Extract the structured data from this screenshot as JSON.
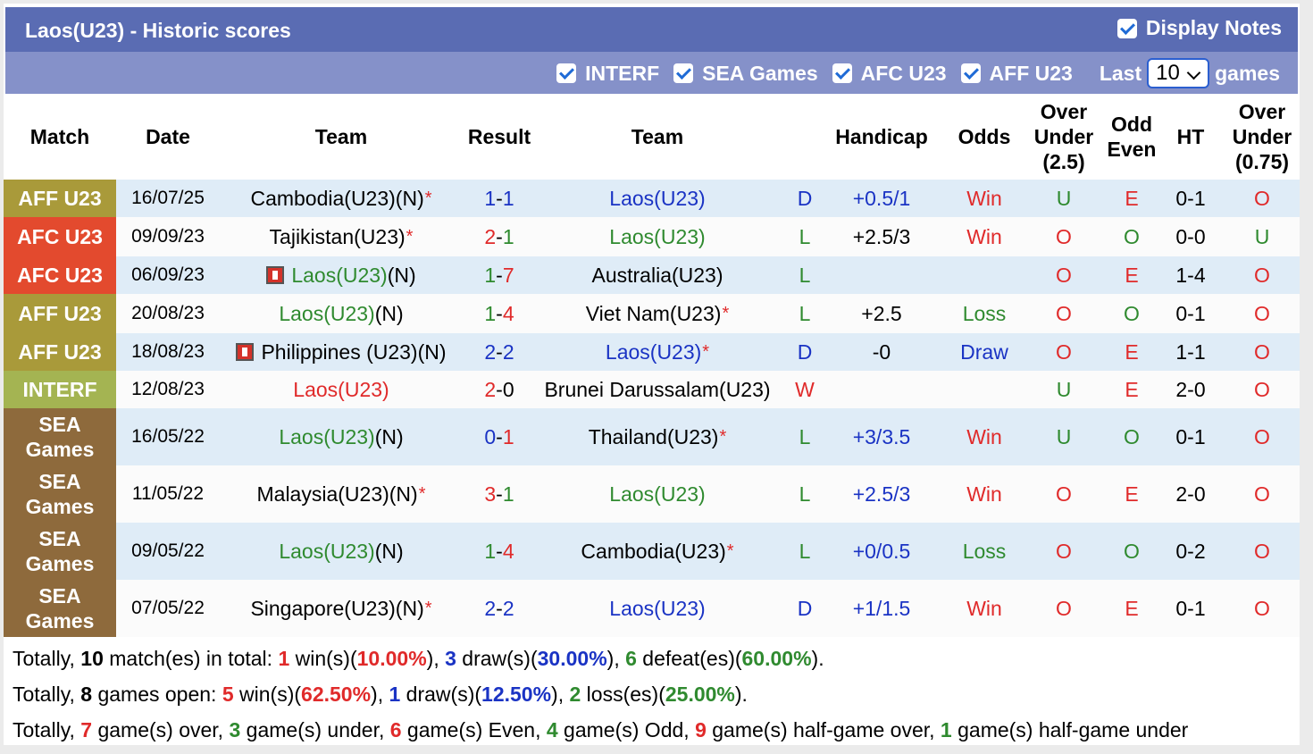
{
  "header": {
    "title": "Laos(U23) - Historic scores",
    "display_notes_label": "Display Notes"
  },
  "filters": {
    "items": [
      {
        "label": "INTERF",
        "checked": true
      },
      {
        "label": "SEA Games",
        "checked": true
      },
      {
        "label": "AFC U23",
        "checked": true
      },
      {
        "label": "AFF U23",
        "checked": true
      }
    ],
    "last_label": "Last",
    "last_value": "10",
    "games_label": "games"
  },
  "columns": {
    "match": "Match",
    "date": "Date",
    "team1": "Team",
    "result": "Result",
    "team2": "Team",
    "handicap": "Handicap",
    "odds": "Odds",
    "ou25": "Over Under (2.5)",
    "oddeven": "Odd Even",
    "ht": "HT",
    "ou075": "Over Under (0.75)"
  },
  "colors": {
    "aff": "#a99a3a",
    "afc": "#e34a2e",
    "interf": "#a4b452",
    "sea": "#8e6a3c",
    "title_bar": "#5a6cb3",
    "filter_bar": "#8591c9",
    "win_green": "#2f8a2f",
    "loss_red": "#e02a2a",
    "draw_blue": "#1a33c4"
  },
  "rows": [
    {
      "match": "AFF U23",
      "league": "aff",
      "date": "16/07/25",
      "home": "Cambodia(U23)(N)",
      "home_star": "*",
      "home_flag": false,
      "home_color": "black",
      "score_h": "1",
      "score_a": "1",
      "score_h_color": "blue",
      "score_a_color": "blue",
      "away": "Laos(U23)",
      "away_star": "",
      "away_color": "blue",
      "wdl": "D",
      "wdl_color": "blue",
      "handicap": "+0.5/1",
      "handicap_color": "blue",
      "odds": "Win",
      "odds_color": "red",
      "ou": "U",
      "ou_color": "green",
      "oe": "E",
      "oe_color": "red",
      "ht": "0-1",
      "ou2": "O",
      "ou2_color": "red",
      "alt": true
    },
    {
      "match": "AFC U23",
      "league": "afc",
      "date": "09/09/23",
      "home": "Tajikistan(U23)",
      "home_star": "*",
      "home_flag": false,
      "home_color": "black",
      "score_h": "2",
      "score_a": "1",
      "score_h_color": "red",
      "score_a_color": "green",
      "away": "Laos(U23)",
      "away_star": "",
      "away_color": "green",
      "wdl": "L",
      "wdl_color": "green",
      "handicap": "+2.5/3",
      "handicap_color": "black",
      "odds": "Win",
      "odds_color": "red",
      "ou": "O",
      "ou_color": "red",
      "oe": "O",
      "oe_color": "green",
      "ht": "0-0",
      "ou2": "U",
      "ou2_color": "green",
      "alt": false
    },
    {
      "match": "AFC U23",
      "league": "afc",
      "date": "06/09/23",
      "home": "Laos(U23)",
      "home_star": "",
      "home_flag": true,
      "home_color": "green",
      "home_suffix": "(N)",
      "score_h": "1",
      "score_a": "7",
      "score_h_color": "green",
      "score_a_color": "red",
      "away": "Australia(U23)",
      "away_star": "",
      "away_color": "black",
      "wdl": "L",
      "wdl_color": "green",
      "handicap": "",
      "handicap_color": "black",
      "odds": "",
      "odds_color": "black",
      "ou": "O",
      "ou_color": "red",
      "oe": "E",
      "oe_color": "red",
      "ht": "1-4",
      "ou2": "O",
      "ou2_color": "red",
      "alt": true
    },
    {
      "match": "AFF U23",
      "league": "aff",
      "date": "20/08/23",
      "home": "Laos(U23)",
      "home_star": "",
      "home_flag": false,
      "home_color": "green",
      "home_suffix": "(N)",
      "score_h": "1",
      "score_a": "4",
      "score_h_color": "green",
      "score_a_color": "red",
      "away": "Viet Nam(U23)",
      "away_star": "*",
      "away_color": "black",
      "wdl": "L",
      "wdl_color": "green",
      "handicap": "+2.5",
      "handicap_color": "black",
      "odds": "Loss",
      "odds_color": "green",
      "ou": "O",
      "ou_color": "red",
      "oe": "O",
      "oe_color": "green",
      "ht": "0-1",
      "ou2": "O",
      "ou2_color": "red",
      "alt": false
    },
    {
      "match": "AFF U23",
      "league": "aff",
      "date": "18/08/23",
      "home": "Philippines (U23)(N)",
      "home_star": "",
      "home_flag": true,
      "home_color": "black",
      "score_h": "2",
      "score_a": "2",
      "score_h_color": "blue",
      "score_a_color": "blue",
      "away": "Laos(U23)",
      "away_star": "*",
      "away_color": "blue",
      "wdl": "D",
      "wdl_color": "blue",
      "handicap": "-0",
      "handicap_color": "black",
      "odds": "Draw",
      "odds_color": "blue",
      "ou": "O",
      "ou_color": "red",
      "oe": "E",
      "oe_color": "red",
      "ht": "1-1",
      "ou2": "O",
      "ou2_color": "red",
      "alt": true
    },
    {
      "match": "INTERF",
      "league": "interf",
      "date": "12/08/23",
      "home": "Laos(U23)",
      "home_star": "",
      "home_flag": false,
      "home_color": "red",
      "score_h": "2",
      "score_a": "0",
      "score_h_color": "red",
      "score_a_color": "black",
      "away": "Brunei Darussalam(U23)",
      "away_star": "",
      "away_color": "black",
      "wdl": "W",
      "wdl_color": "red",
      "handicap": "",
      "handicap_color": "black",
      "odds": "",
      "odds_color": "black",
      "ou": "U",
      "ou_color": "green",
      "oe": "E",
      "oe_color": "red",
      "ht": "2-0",
      "ou2": "O",
      "ou2_color": "red",
      "alt": false
    },
    {
      "match": "SEA Games",
      "league": "sea",
      "date": "16/05/22",
      "home": "Laos(U23)",
      "home_star": "",
      "home_flag": false,
      "home_color": "green",
      "home_suffix": "(N)",
      "score_h": "0",
      "score_a": "1",
      "score_h_color": "blue",
      "score_a_color": "red",
      "away": "Thailand(U23)",
      "away_star": "*",
      "away_color": "black",
      "wdl": "L",
      "wdl_color": "green",
      "handicap": "+3/3.5",
      "handicap_color": "blue",
      "odds": "Win",
      "odds_color": "red",
      "ou": "U",
      "ou_color": "green",
      "oe": "O",
      "oe_color": "green",
      "ht": "0-1",
      "ou2": "O",
      "ou2_color": "red",
      "alt": true
    },
    {
      "match": "SEA Games",
      "league": "sea",
      "date": "11/05/22",
      "home": "Malaysia(U23)(N)",
      "home_star": "*",
      "home_flag": false,
      "home_color": "black",
      "score_h": "3",
      "score_a": "1",
      "score_h_color": "red",
      "score_a_color": "green",
      "away": "Laos(U23)",
      "away_star": "",
      "away_color": "green",
      "wdl": "L",
      "wdl_color": "green",
      "handicap": "+2.5/3",
      "handicap_color": "blue",
      "odds": "Win",
      "odds_color": "red",
      "ou": "O",
      "ou_color": "red",
      "oe": "E",
      "oe_color": "red",
      "ht": "2-0",
      "ou2": "O",
      "ou2_color": "red",
      "alt": false
    },
    {
      "match": "SEA Games",
      "league": "sea",
      "date": "09/05/22",
      "home": "Laos(U23)",
      "home_star": "",
      "home_flag": false,
      "home_color": "green",
      "home_suffix": "(N)",
      "score_h": "1",
      "score_a": "4",
      "score_h_color": "green",
      "score_a_color": "red",
      "away": "Cambodia(U23)",
      "away_star": "*",
      "away_color": "black",
      "wdl": "L",
      "wdl_color": "green",
      "handicap": "+0/0.5",
      "handicap_color": "blue",
      "odds": "Loss",
      "odds_color": "green",
      "ou": "O",
      "ou_color": "red",
      "oe": "O",
      "oe_color": "green",
      "ht": "0-2",
      "ou2": "O",
      "ou2_color": "red",
      "alt": true
    },
    {
      "match": "SEA Games",
      "league": "sea",
      "date": "07/05/22",
      "home": "Singapore(U23)(N)",
      "home_star": "*",
      "home_flag": false,
      "home_color": "black",
      "score_h": "2",
      "score_a": "2",
      "score_h_color": "blue",
      "score_a_color": "blue",
      "away": "Laos(U23)",
      "away_star": "",
      "away_color": "blue",
      "wdl": "D",
      "wdl_color": "blue",
      "handicap": "+1/1.5",
      "handicap_color": "blue",
      "odds": "Win",
      "odds_color": "red",
      "ou": "O",
      "ou_color": "red",
      "oe": "E",
      "oe_color": "red",
      "ht": "0-1",
      "ou2": "O",
      "ou2_color": "red",
      "alt": false
    }
  ],
  "summary": {
    "line1": [
      {
        "t": "Totally, ",
        "c": "black",
        "b": false
      },
      {
        "t": "10",
        "c": "black",
        "b": true
      },
      {
        "t": " match(es) in total: ",
        "c": "black",
        "b": false
      },
      {
        "t": "1",
        "c": "red",
        "b": true
      },
      {
        "t": " win(s)(",
        "c": "black",
        "b": false
      },
      {
        "t": "10.00%",
        "c": "red",
        "b": true
      },
      {
        "t": "), ",
        "c": "black",
        "b": false
      },
      {
        "t": "3",
        "c": "blue",
        "b": true
      },
      {
        "t": " draw(s)(",
        "c": "black",
        "b": false
      },
      {
        "t": "30.00%",
        "c": "blue",
        "b": true
      },
      {
        "t": "), ",
        "c": "black",
        "b": false
      },
      {
        "t": "6",
        "c": "green",
        "b": true
      },
      {
        "t": " defeat(es)(",
        "c": "black",
        "b": false
      },
      {
        "t": "60.00%",
        "c": "green",
        "b": true
      },
      {
        "t": ").",
        "c": "black",
        "b": false
      }
    ],
    "line2": [
      {
        "t": "Totally, ",
        "c": "black",
        "b": false
      },
      {
        "t": "8",
        "c": "black",
        "b": true
      },
      {
        "t": " games open: ",
        "c": "black",
        "b": false
      },
      {
        "t": "5",
        "c": "red",
        "b": true
      },
      {
        "t": " win(s)(",
        "c": "black",
        "b": false
      },
      {
        "t": "62.50%",
        "c": "red",
        "b": true
      },
      {
        "t": "), ",
        "c": "black",
        "b": false
      },
      {
        "t": "1",
        "c": "blue",
        "b": true
      },
      {
        "t": " draw(s)(",
        "c": "black",
        "b": false
      },
      {
        "t": "12.50%",
        "c": "blue",
        "b": true
      },
      {
        "t": "), ",
        "c": "black",
        "b": false
      },
      {
        "t": "2",
        "c": "green",
        "b": true
      },
      {
        "t": " loss(es)(",
        "c": "black",
        "b": false
      },
      {
        "t": "25.00%",
        "c": "green",
        "b": true
      },
      {
        "t": ").",
        "c": "black",
        "b": false
      }
    ],
    "line3": [
      {
        "t": "Totally, ",
        "c": "black",
        "b": false
      },
      {
        "t": "7",
        "c": "red",
        "b": true
      },
      {
        "t": " game(s) over, ",
        "c": "black",
        "b": false
      },
      {
        "t": "3",
        "c": "green",
        "b": true
      },
      {
        "t": " game(s) under, ",
        "c": "black",
        "b": false
      },
      {
        "t": "6",
        "c": "red",
        "b": true
      },
      {
        "t": " game(s) Even, ",
        "c": "black",
        "b": false
      },
      {
        "t": "4",
        "c": "green",
        "b": true
      },
      {
        "t": " game(s) Odd, ",
        "c": "black",
        "b": false
      },
      {
        "t": "9",
        "c": "red",
        "b": true
      },
      {
        "t": " game(s) half-game over, ",
        "c": "black",
        "b": false
      },
      {
        "t": "1",
        "c": "green",
        "b": true
      },
      {
        "t": " game(s) half-game under",
        "c": "black",
        "b": false
      }
    ]
  }
}
